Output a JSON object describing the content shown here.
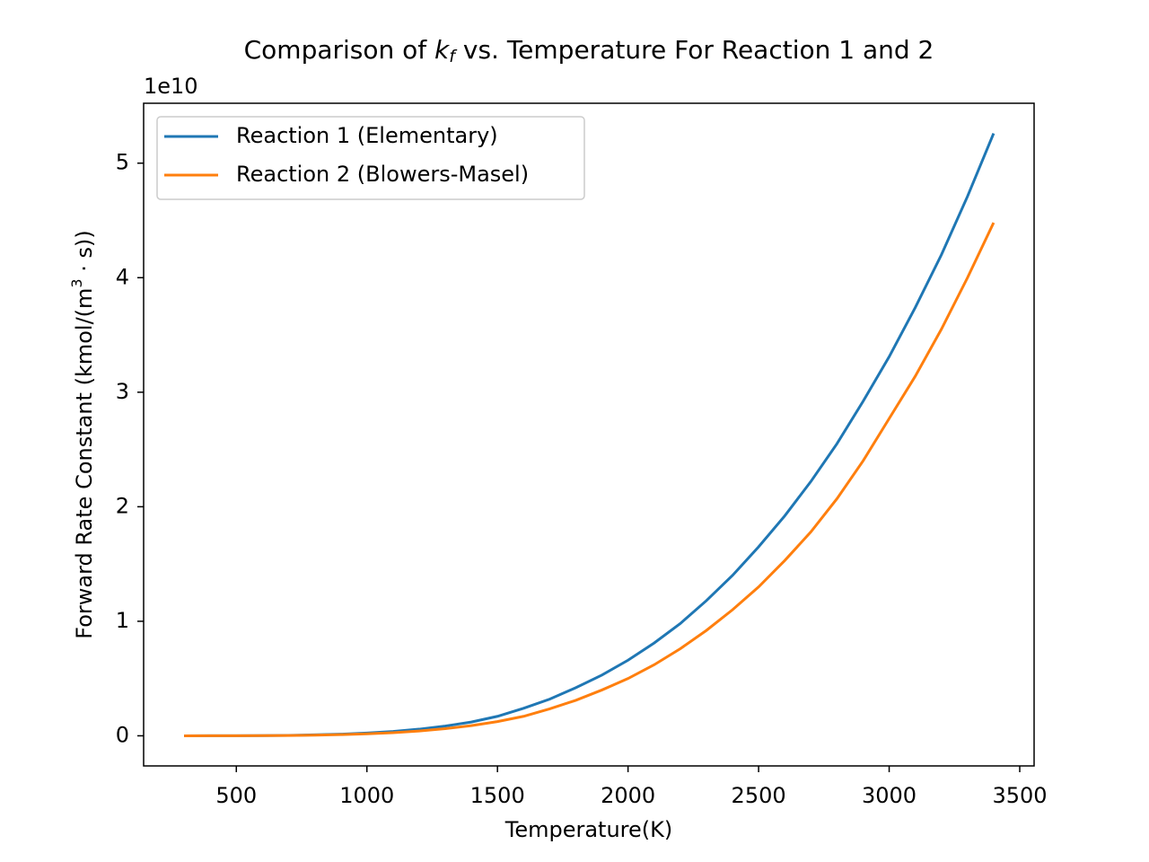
{
  "chart_data": {
    "type": "line",
    "title": {
      "before": "Comparison of ",
      "symbol": "k",
      "subscript": "f",
      "after": " vs. Temperature For Reaction 1 and 2"
    },
    "x_label": "Temperature(K)",
    "y_label": {
      "before": "Forward Rate Constant (kmol/(m",
      "superscript": "3",
      "after": " · s))"
    },
    "y_offset_label": "1e10",
    "x": [
      300,
      400,
      500,
      600,
      700,
      800,
      900,
      1000,
      1100,
      1200,
      1300,
      1400,
      1500,
      1600,
      1700,
      1800,
      1900,
      2000,
      2100,
      2200,
      2300,
      2400,
      2500,
      2600,
      2700,
      2800,
      2900,
      3000,
      3100,
      3200,
      3300,
      3400
    ],
    "series": [
      {
        "name": "Reaction 1 (Elementary)",
        "color": "#1f77b4",
        "values": [
          0.0001,
          0.0003,
          0.001,
          0.002,
          0.004,
          0.008,
          0.014,
          0.024,
          0.038,
          0.058,
          0.085,
          0.12,
          0.17,
          0.24,
          0.32,
          0.42,
          0.53,
          0.66,
          0.81,
          0.98,
          1.18,
          1.4,
          1.65,
          1.92,
          2.22,
          2.55,
          2.92,
          3.31,
          3.74,
          4.2,
          4.71,
          5.26
        ]
      },
      {
        "name": "Reaction 2 (Blowers-Masel)",
        "color": "#ff7f0e",
        "values": [
          0.0001,
          0.0002,
          0.0007,
          0.0014,
          0.003,
          0.006,
          0.01,
          0.017,
          0.027,
          0.042,
          0.062,
          0.089,
          0.124,
          0.17,
          0.235,
          0.31,
          0.4,
          0.5,
          0.62,
          0.76,
          0.92,
          1.1,
          1.3,
          1.53,
          1.78,
          2.07,
          2.4,
          2.77,
          3.14,
          3.55,
          4.0,
          4.48
        ]
      }
    ],
    "xlim": [
      145,
      3555
    ],
    "xticks": [
      500,
      1000,
      1500,
      2000,
      2500,
      3000,
      3500
    ],
    "ylim": [
      -0.263,
      5.523
    ],
    "yticks": [
      0,
      1,
      2,
      3,
      4,
      5
    ],
    "legend": "upper left",
    "grid": false
  }
}
